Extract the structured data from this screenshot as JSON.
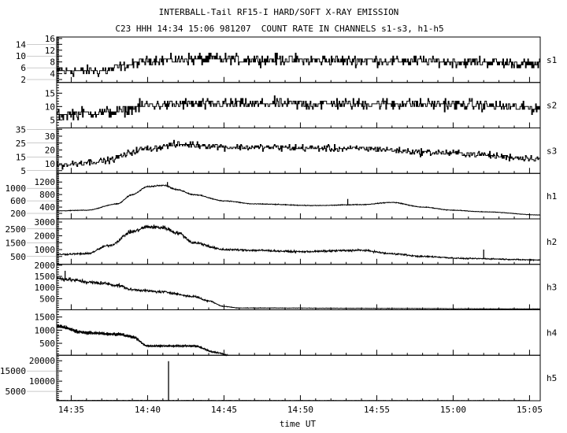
{
  "chart_data": {
    "type": "line",
    "title": "INTERBALL-Tail RF15-I HARD/SOFT X-RAY EMISSION",
    "subtitle": "C23 HHH 14:34 15:06 981207  COUNT RATE IN CHANNELS s1-s3, h1-h5",
    "xlabel": "time UT",
    "x_units": "minutes after 14:34 UT",
    "xlim": [
      0.05,
      31.7
    ],
    "x_ticks": [
      {
        "value": 1,
        "label": "14:35"
      },
      {
        "value": 6,
        "label": "14:40"
      },
      {
        "value": 11,
        "label": "14:45"
      },
      {
        "value": 16,
        "label": "14:50"
      },
      {
        "value": 21,
        "label": "14:55"
      },
      {
        "value": 26,
        "label": "15:00"
      },
      {
        "value": 31,
        "label": "15:05"
      }
    ],
    "panels": [
      {
        "name": "s1",
        "ylim": [
          1,
          16.5
        ],
        "yticks": [
          2,
          4,
          6,
          8,
          10,
          12,
          14,
          16
        ],
        "profile": [
          [
            0,
            5
          ],
          [
            3,
            5
          ],
          [
            5,
            7
          ],
          [
            6,
            8.5
          ],
          [
            10,
            9
          ],
          [
            20,
            8.5
          ],
          [
            28,
            8
          ],
          [
            31.7,
            7
          ]
        ],
        "noise": {
          "rel": 0,
          "abs": 2.6,
          "step": true
        },
        "x_end": 31.7,
        "spikes": []
      },
      {
        "name": "s2",
        "ylim": [
          2,
          19
        ],
        "yticks": [
          5,
          10,
          15
        ],
        "profile": [
          [
            0,
            7
          ],
          [
            4,
            8
          ],
          [
            6,
            10.5
          ],
          [
            10,
            11
          ],
          [
            25,
            11
          ],
          [
            31.7,
            9.5
          ]
        ],
        "noise": {
          "rel": 0,
          "abs": 3,
          "step": true
        },
        "x_end": 31.7,
        "spikes": []
      },
      {
        "name": "s3",
        "ylim": [
          3,
          36
        ],
        "yticks": [
          5,
          10,
          15,
          20,
          25,
          30,
          35
        ],
        "profile": [
          [
            0,
            9
          ],
          [
            3,
            12
          ],
          [
            6,
            21
          ],
          [
            8,
            24
          ],
          [
            12,
            22
          ],
          [
            20,
            21
          ],
          [
            25,
            18
          ],
          [
            31.7,
            14
          ]
        ],
        "noise": {
          "rel": 0,
          "abs": 3.5,
          "step": true
        },
        "x_end": 31.7,
        "spikes": []
      },
      {
        "name": "h1",
        "ylim": [
          25,
          1475
        ],
        "yticks": [
          200,
          400,
          600,
          800,
          1000,
          1200
        ],
        "profile": [
          [
            0,
            280
          ],
          [
            2,
            300
          ],
          [
            4,
            500
          ],
          [
            5,
            800
          ],
          [
            6,
            1050
          ],
          [
            7,
            1100
          ],
          [
            8,
            950
          ],
          [
            9,
            800
          ],
          [
            11,
            600
          ],
          [
            13,
            500
          ],
          [
            17,
            450
          ],
          [
            20,
            480
          ],
          [
            22,
            550
          ],
          [
            24,
            400
          ],
          [
            26,
            300
          ],
          [
            28,
            250
          ],
          [
            31.7,
            150
          ]
        ],
        "noise": {
          "rel": 0.02,
          "abs": 8,
          "step": false
        },
        "x_end": 31.7,
        "spikes": [
          [
            7.3,
            1200
          ],
          [
            19.1,
            660
          ],
          [
            27.4,
            260
          ]
        ]
      },
      {
        "name": "h2",
        "ylim": [
          -70,
          3230
        ],
        "yticks": [
          500,
          1000,
          1500,
          2000,
          2500,
          3000
        ],
        "profile": [
          [
            0,
            650
          ],
          [
            2,
            700
          ],
          [
            3.5,
            1300
          ],
          [
            5,
            2300
          ],
          [
            6,
            2650
          ],
          [
            7,
            2600
          ],
          [
            8,
            2200
          ],
          [
            9,
            1500
          ],
          [
            11,
            1000
          ],
          [
            13,
            950
          ],
          [
            16,
            850
          ],
          [
            20,
            950
          ],
          [
            22,
            700
          ],
          [
            24,
            500
          ],
          [
            27,
            350
          ],
          [
            31.7,
            250
          ]
        ],
        "noise": {
          "rel": 0.07,
          "abs": 40,
          "step": false
        },
        "x_end": 31.7,
        "spikes": [
          [
            28.0,
            1000
          ]
        ]
      },
      {
        "name": "h3",
        "ylim": [
          0,
          2040
        ],
        "yticks": [
          500,
          1000,
          1500,
          2000
        ],
        "profile": [
          [
            0,
            1400
          ],
          [
            3,
            1200
          ],
          [
            4,
            1100
          ],
          [
            5,
            900
          ],
          [
            7,
            800
          ],
          [
            9,
            600
          ],
          [
            10,
            400
          ],
          [
            11,
            150
          ],
          [
            12,
            80
          ],
          [
            31.7,
            40
          ]
        ],
        "noise": {
          "rel": 0.09,
          "abs": 10,
          "step": false
        },
        "x_end": 31.7,
        "spikes": [
          [
            0.6,
            1750
          ]
        ]
      },
      {
        "name": "h4",
        "ylim": [
          45,
          1775
        ],
        "yticks": [
          500,
          1000,
          1500
        ],
        "profile": [
          [
            0,
            1150
          ],
          [
            2,
            900
          ],
          [
            4,
            850
          ],
          [
            5,
            750
          ],
          [
            6,
            400
          ],
          [
            7,
            400
          ],
          [
            9,
            400
          ],
          [
            10.5,
            150
          ],
          [
            11.3,
            40
          ]
        ],
        "noise": {
          "rel": 0.09,
          "abs": 15,
          "step": false
        },
        "x_end": 11.3,
        "spikes": []
      },
      {
        "name": "h5",
        "ylim": [
          400,
          22700
        ],
        "yticks": [
          5000,
          10000,
          15000,
          20000
        ],
        "profile": [
          [
            0,
            550
          ],
          [
            31.7,
            500
          ]
        ],
        "noise": {
          "rel": 0.1,
          "abs": 40,
          "step": false
        },
        "x_end": 31.0,
        "spikes": [
          [
            7.37,
            19800
          ]
        ]
      }
    ]
  }
}
